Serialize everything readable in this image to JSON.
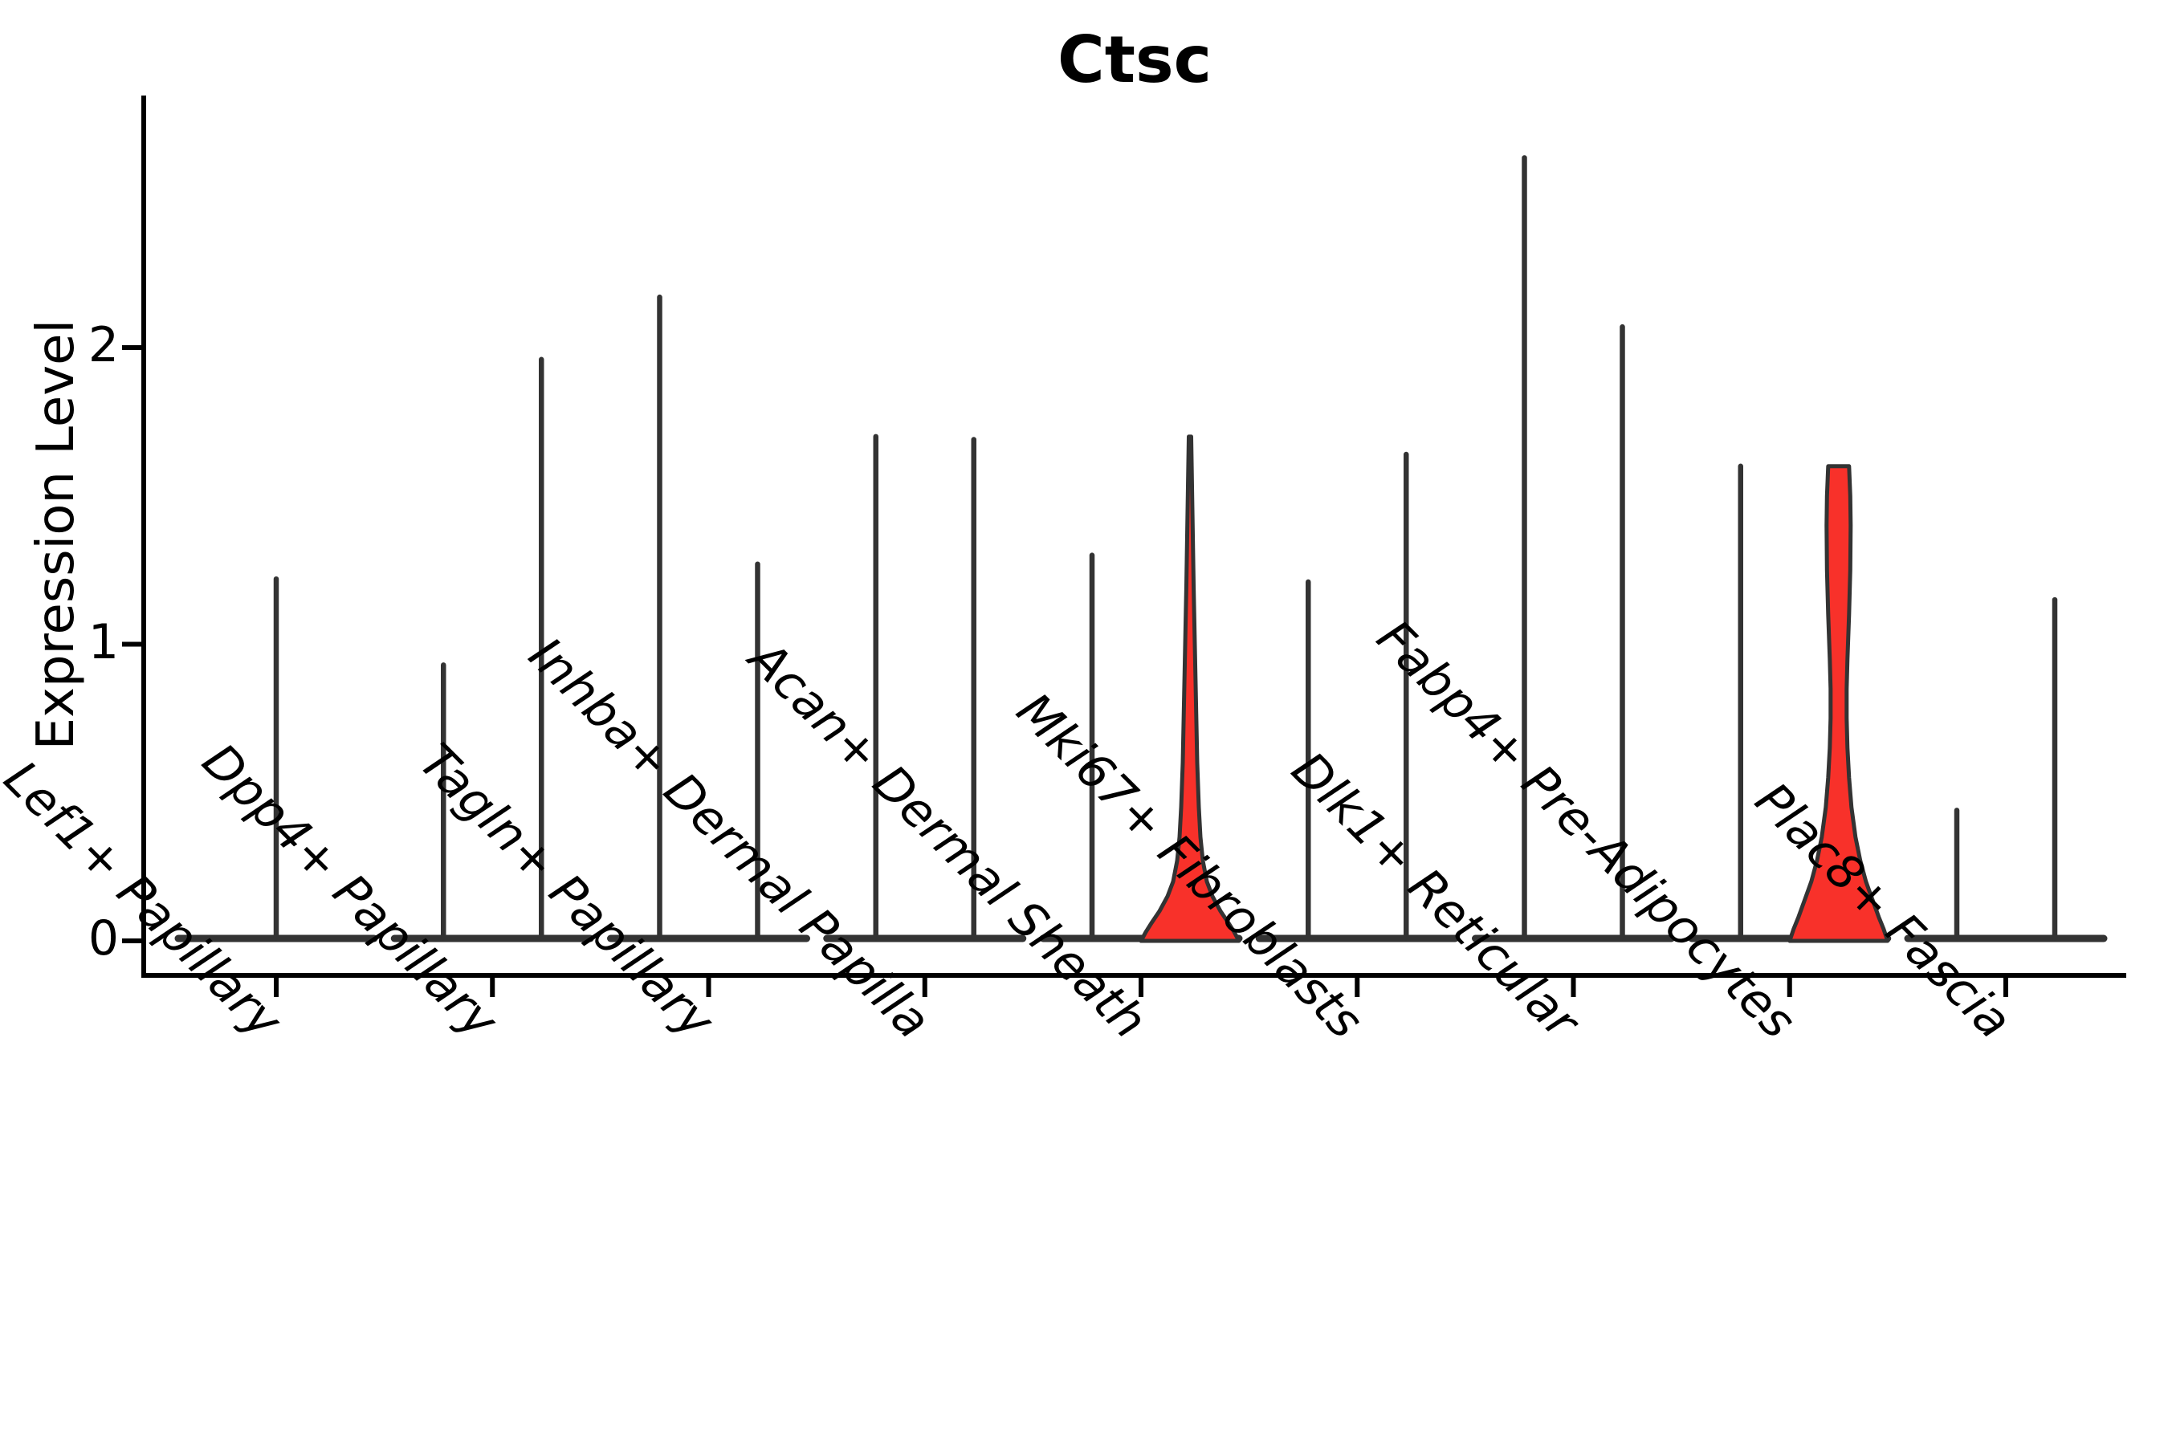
{
  "chart_data": {
    "type": "violin",
    "title": "Ctsc",
    "ylabel": "Expression Level",
    "xlabel": "",
    "yticks": [
      0,
      1,
      2
    ],
    "ylim": [
      0,
      2.85
    ],
    "grid": false,
    "legend": "none",
    "axis_color": "#000000",
    "outline_color": "#333333",
    "highlight_color": "#F8312A",
    "background_color": "#ffffff",
    "categories": [
      {
        "label": "Lef1+ Papillary",
        "violins": [
          {
            "pos": "center",
            "max": 1.22,
            "fill": "none",
            "shape": "spike",
            "half_width": 122
          }
        ]
      },
      {
        "label": "Dpp4+ Papillary",
        "violins": [
          {
            "pos": "left",
            "max": 0.93,
            "fill": "none",
            "shape": "spike",
            "half_width": 61
          },
          {
            "pos": "right",
            "max": 1.96,
            "fill": "none",
            "shape": "spike",
            "half_width": 61
          }
        ]
      },
      {
        "label": "Tagln+ Papillary",
        "violins": [
          {
            "pos": "left",
            "max": 2.17,
            "fill": "none",
            "shape": "spike",
            "half_width": 61
          },
          {
            "pos": "right",
            "max": 1.27,
            "fill": "none",
            "shape": "spike",
            "half_width": 61
          }
        ]
      },
      {
        "label": "Inhba+ Dermal Papilla",
        "violins": [
          {
            "pos": "left",
            "max": 1.7,
            "fill": "none",
            "shape": "spike",
            "half_width": 61
          },
          {
            "pos": "right",
            "max": 1.69,
            "fill": "none",
            "shape": "spike",
            "half_width": 61
          }
        ]
      },
      {
        "label": "Acan+ Dermal Sheath",
        "violins": [
          {
            "pos": "left",
            "max": 1.3,
            "fill": "none",
            "shape": "spike",
            "half_width": 61
          },
          {
            "pos": "right",
            "max": 1.7,
            "fill": "highlight",
            "shape": "pointed-bulge",
            "half_width": 61,
            "profile": [
              [
                1.7,
                1.5
              ],
              [
                1.45,
                3.0
              ],
              [
                1.2,
                4.5
              ],
              [
                1.0,
                6.0
              ],
              [
                0.8,
                7.5
              ],
              [
                0.6,
                9.0
              ],
              [
                0.45,
                11.0
              ],
              [
                0.35,
                13.0
              ],
              [
                0.27,
                16.0
              ],
              [
                0.2,
                21.0
              ],
              [
                0.15,
                28.0
              ],
              [
                0.1,
                38.0
              ],
              [
                0.06,
                48.0
              ],
              [
                0.03,
                55.0
              ],
              [
                0.0,
                61.0
              ]
            ]
          }
        ]
      },
      {
        "label": "Mki67+ Fibroblasts",
        "violins": [
          {
            "pos": "left",
            "max": 1.21,
            "fill": "none",
            "shape": "spike",
            "half_width": 61
          },
          {
            "pos": "right",
            "max": 1.64,
            "fill": "none",
            "shape": "spike",
            "half_width": 61
          }
        ]
      },
      {
        "label": "Dlk1+ Reticular",
        "violins": [
          {
            "pos": "left",
            "max": 2.64,
            "fill": "none",
            "shape": "spike",
            "half_width": 61
          },
          {
            "pos": "right",
            "max": 2.07,
            "fill": "none",
            "shape": "spike",
            "half_width": 61
          }
        ]
      },
      {
        "label": "Fabp4+ Pre-Adipocytes",
        "violins": [
          {
            "pos": "left",
            "max": 1.6,
            "fill": "none",
            "shape": "spike",
            "half_width": 61
          },
          {
            "pos": "right",
            "max": 1.6,
            "fill": "highlight",
            "shape": "flat-top-hourglass",
            "half_width": 61,
            "profile": [
              [
                1.6,
                13.0
              ],
              [
                1.5,
                14.5
              ],
              [
                1.4,
                15.0
              ],
              [
                1.25,
                14.5
              ],
              [
                1.1,
                13.0
              ],
              [
                0.95,
                11.0
              ],
              [
                0.85,
                10.0
              ],
              [
                0.75,
                10.0
              ],
              [
                0.65,
                11.0
              ],
              [
                0.55,
                13.0
              ],
              [
                0.45,
                16.0
              ],
              [
                0.35,
                21.0
              ],
              [
                0.27,
                27.0
              ],
              [
                0.2,
                34.0
              ],
              [
                0.14,
                42.0
              ],
              [
                0.08,
                50.0
              ],
              [
                0.04,
                56.0
              ],
              [
                0.0,
                61.0
              ]
            ]
          }
        ]
      },
      {
        "label": "Plac8+ Fascia",
        "violins": [
          {
            "pos": "left",
            "max": 0.44,
            "fill": "none",
            "shape": "spike",
            "half_width": 61
          },
          {
            "pos": "right",
            "max": 1.15,
            "fill": "none",
            "shape": "spike",
            "half_width": 61
          }
        ]
      }
    ]
  }
}
